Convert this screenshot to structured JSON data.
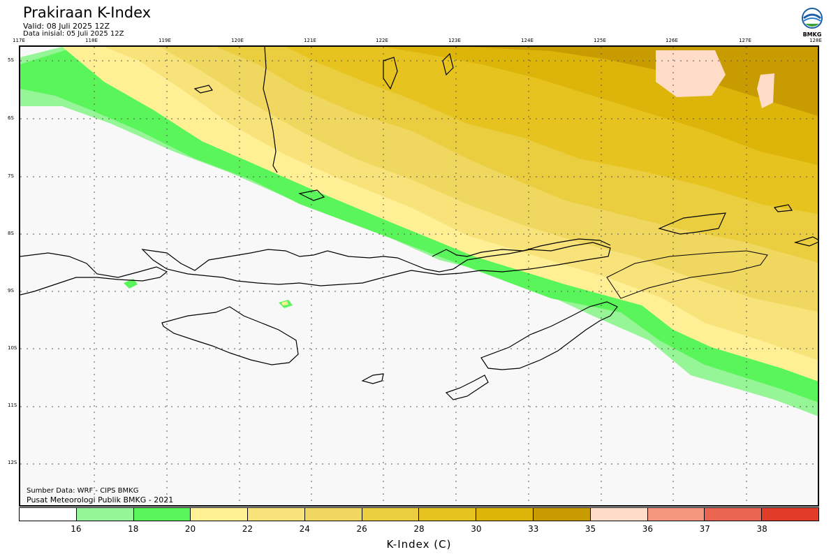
{
  "header": {
    "title": "Prakiraan K-Index",
    "valid": "Valid: 08 Juli 2025 12Z",
    "init": "Data inisial: 05 Juli 2025 12Z"
  },
  "logo": {
    "text": "BMKG",
    "icon": "bmkg-logo-icon"
  },
  "map": {
    "lon_labels": [
      "117E",
      "118E",
      "119E",
      "120E",
      "121E",
      "122E",
      "123E",
      "124E",
      "125E",
      "126E",
      "127E",
      "128E"
    ],
    "lat_labels": [
      "5S",
      "6S",
      "7S",
      "8S",
      "9S",
      "10S",
      "11S",
      "12S"
    ]
  },
  "credits": {
    "source": "Sumber Data: WRF - CIPS BMKG",
    "center": "Pusat Meteorologi Publik BMKG - 2021"
  },
  "colorbar": {
    "title": "K-Index (C)",
    "ticks": [
      "16",
      "18",
      "20",
      "22",
      "24",
      "26",
      "28",
      "30",
      "33",
      "35",
      "36",
      "37",
      "38"
    ],
    "colors": [
      "#ffffff",
      "#96f596",
      "#5af55a",
      "#fff096",
      "#f8e27a",
      "#f0d860",
      "#ebce40",
      "#e6c31e",
      "#dcb40a",
      "#c89b00",
      "#ffdcc8",
      "#f5967f",
      "#eb6450",
      "#e03c28"
    ]
  }
}
